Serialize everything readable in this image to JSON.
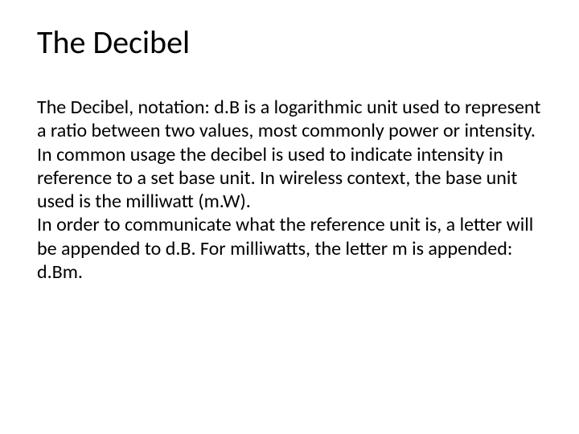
{
  "slide": {
    "title": "The Decibel",
    "body": "The Decibel, notation: d.B is a logarithmic unit used to represent a ratio between two values, most commonly power or intensity.\nIn common usage the decibel is used to indicate intensity in reference to a set base unit. In wireless context, the base unit used is the milliwatt (m.W).\nIn order to communicate what the reference unit is, a letter will be appended to d.B. For milliwatts, the letter m is appended: d.Bm.",
    "title_fontsize": 40,
    "body_fontsize": 24,
    "text_color": "#000000",
    "background_color": "#ffffff",
    "font_family": "Calibri"
  }
}
